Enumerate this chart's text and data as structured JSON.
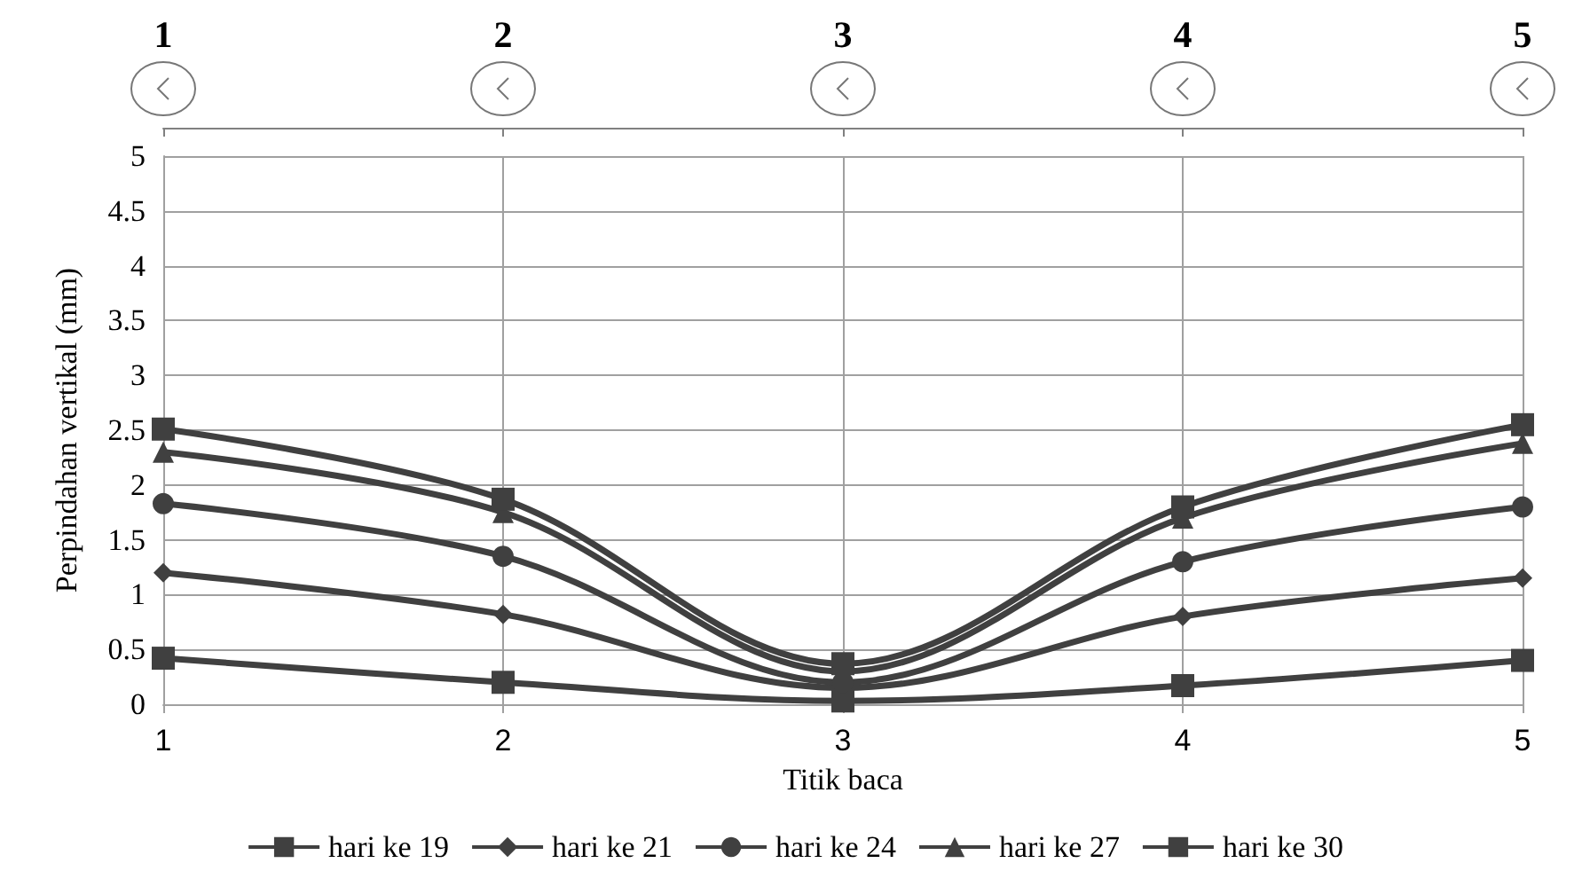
{
  "chart_data": {
    "type": "line",
    "xlabel": "Titik baca",
    "ylabel": "Perpindahan vertikal (mm)",
    "x": [
      1,
      2,
      3,
      4,
      5
    ],
    "xlim": [
      1,
      5
    ],
    "xticks": [
      1,
      2,
      3,
      4,
      5
    ],
    "x2lim": [
      1,
      5
    ],
    "x2ticks": [
      1,
      2,
      3,
      4,
      5
    ],
    "ylim": [
      0,
      5
    ],
    "yticks": [
      0,
      0.5,
      1,
      1.5,
      2,
      2.5,
      3,
      3.5,
      4,
      4.5,
      5
    ],
    "grid": true,
    "legend": "bottom",
    "line_style": "solid",
    "series": [
      {
        "name": "hari ke 19",
        "color": "#404040",
        "marker": "square",
        "values": [
          0.42,
          0.2,
          0.03,
          0.17,
          0.4
        ]
      },
      {
        "name": "hari ke 21",
        "color": "#404040",
        "marker": "diamond",
        "values": [
          1.2,
          0.82,
          0.15,
          0.8,
          1.15
        ]
      },
      {
        "name": "hari ke 24",
        "color": "#404040",
        "marker": "circle",
        "values": [
          1.83,
          1.35,
          0.2,
          1.3,
          1.8
        ]
      },
      {
        "name": "hari ke 27",
        "color": "#404040",
        "marker": "triangle",
        "values": [
          2.3,
          1.75,
          0.3,
          1.7,
          2.38
        ]
      },
      {
        "name": "hari ke 30",
        "color": "#404040",
        "marker": "square",
        "values": [
          2.51,
          1.87,
          0.37,
          1.8,
          2.55
        ]
      }
    ]
  }
}
